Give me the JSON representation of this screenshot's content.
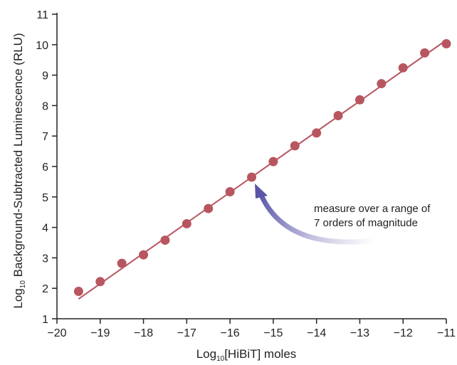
{
  "chart_data": {
    "type": "scatter",
    "xlabel": {
      "prefix": "Log",
      "sub": "10",
      "rest": "[HiBiT] moles"
    },
    "ylabel": {
      "prefix": "Log",
      "sub": "10",
      "rest": " Background-Subtracted Luminescence (RLU)"
    },
    "xlim": [
      -20,
      -11
    ],
    "ylim": [
      1,
      11
    ],
    "xticks": [
      "−20",
      "−19",
      "−18",
      "−17",
      "−16",
      "−15",
      "−14",
      "−13",
      "−12",
      "−11"
    ],
    "yticks": [
      "1",
      "2",
      "3",
      "4",
      "5",
      "6",
      "7",
      "8",
      "9",
      "10",
      "11"
    ],
    "grid": false,
    "series": [
      {
        "x": [
          -19.5,
          -19.0,
          -18.5,
          -18.0,
          -17.5,
          -17.0,
          -16.5,
          -16.0,
          -15.5,
          -15.0,
          -14.5,
          -14.0,
          -13.5,
          -13.0,
          -12.5,
          -12.0,
          -11.5,
          -11.0
        ],
        "y": [
          1.9,
          2.22,
          2.82,
          3.1,
          3.58,
          4.12,
          4.62,
          5.17,
          5.65,
          6.16,
          6.68,
          7.1,
          7.67,
          8.19,
          8.72,
          9.24,
          9.73,
          10.03
        ]
      }
    ],
    "fit_line": {
      "x": [
        -19.5,
        -11.0
      ],
      "y": [
        1.65,
        10.15
      ]
    },
    "annotation": {
      "lines": [
        "measure over a range of",
        "7 orders of magnitude"
      ],
      "arrow_target": {
        "x": -15.5,
        "y": 5.65
      }
    },
    "colors": {
      "marker": "#b85660",
      "line": "#b85660",
      "arrow": "#5a55a8",
      "axis": "#222222"
    }
  }
}
